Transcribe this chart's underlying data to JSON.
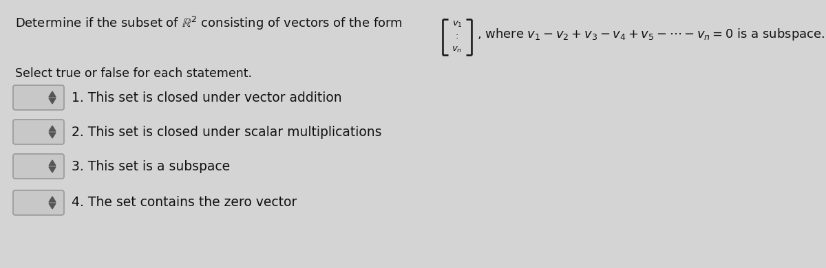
{
  "background_color": "#d4d4d4",
  "title_line": "Determine if the subset of $\\mathbb{R}^2$ consisting of vectors of the form",
  "where_text": ", where $v_1 - v_2 + v_3 - v_4 + v_5 - \\cdots - v_n = 0$ is a subspace.",
  "select_text": "Select true or false for each statement.",
  "statements": [
    "1. This set is closed under vector addition",
    "2. This set is closed under scalar multiplications",
    "3. This set is a subspace",
    "4. The set contains the zero vector"
  ],
  "box_facecolor": "#c8c8c8",
  "box_edgecolor": "#999999",
  "text_color": "#111111",
  "font_size_main": 13,
  "font_size_stmt": 13.5,
  "font_size_select": 12.5
}
